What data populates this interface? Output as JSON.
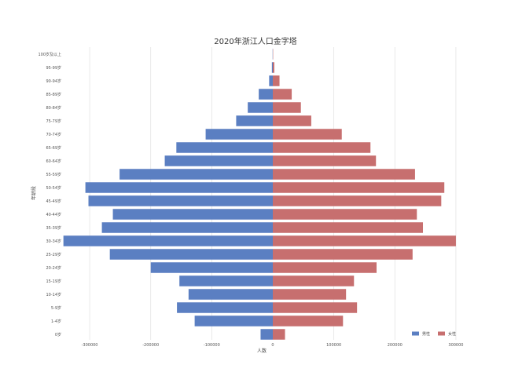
{
  "chart_data": {
    "type": "bar",
    "orientation": "horizontal",
    "layout": "population-pyramid",
    "title": "2020年浙江人口金字塔",
    "xlabel": "人数",
    "ylabel": "年龄段",
    "xlim": [
      -340000,
      340000
    ],
    "x_ticks": [
      -300000,
      -200000,
      -100000,
      0,
      100000,
      200000,
      300000
    ],
    "x_tick_labels": [
      "-300000",
      "-200000",
      "-100000",
      "0",
      "100000",
      "200000",
      "300000"
    ],
    "grid": "vertical",
    "legend_position": "bottom-right",
    "categories": [
      "0岁",
      "1-4岁",
      "5-9岁",
      "10-14岁",
      "15-19岁",
      "20-24岁",
      "25-29岁",
      "30-34岁",
      "35-39岁",
      "40-44岁",
      "45-49岁",
      "50-54岁",
      "55-59岁",
      "60-64岁",
      "65-69岁",
      "70-74岁",
      "75-79岁",
      "80-84岁",
      "85-89岁",
      "90-94岁",
      "95-99岁",
      "100岁及以上"
    ],
    "series": [
      {
        "name": "男性",
        "color": "#5b7fc2",
        "values": [
          -20000,
          -128000,
          -157000,
          -138000,
          -153000,
          -200000,
          -267000,
          -343000,
          -280000,
          -262000,
          -302000,
          -307000,
          -251000,
          -177000,
          -158000,
          -110000,
          -60000,
          -41000,
          -23000,
          -6000,
          -1500,
          -300
        ]
      },
      {
        "name": "女性",
        "color": "#c76f6f",
        "values": [
          20000,
          115000,
          138000,
          120000,
          133000,
          170000,
          229000,
          300000,
          246000,
          236000,
          276000,
          281000,
          233000,
          169000,
          160000,
          113000,
          63000,
          46000,
          31000,
          11000,
          2500,
          500
        ]
      }
    ]
  }
}
